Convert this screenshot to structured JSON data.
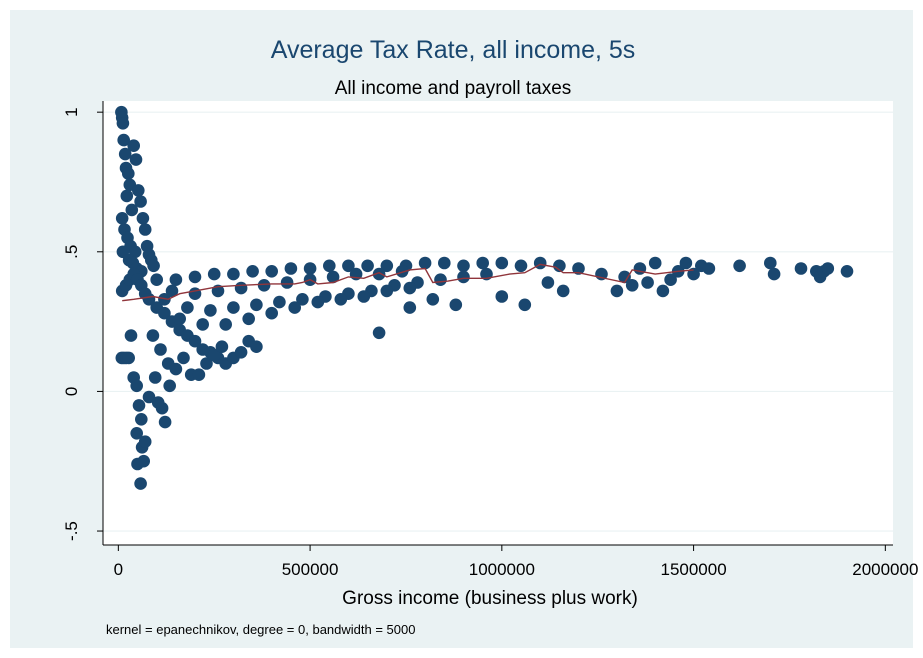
{
  "chart_data": {
    "type": "scatter",
    "title": "Average Tax Rate, all income, 5s",
    "subtitle": "All income and payroll taxes",
    "xlabel": "Gross income (business plus work)",
    "ylabel": "",
    "xlim": [
      -40000,
      2020000
    ],
    "ylim": [
      -0.55,
      1.04
    ],
    "xticks": [
      0,
      500000,
      1000000,
      1500000,
      2000000
    ],
    "xtick_labels": [
      "0",
      "500000",
      "1000000",
      "1500000",
      "2000000"
    ],
    "yticks": [
      -0.5,
      0,
      0.5,
      1
    ],
    "ytick_labels": [
      "-.5",
      "0",
      ".5",
      "1"
    ],
    "grid": true,
    "note": "kernel = epanechnikov, degree = 0, bandwidth = 5000",
    "colors": {
      "background": "#eaf2f3",
      "plot_region": "#ffffff",
      "marker": "#1a476f",
      "smooth_line": "#90353b",
      "title": "#1a476f"
    },
    "series": [
      {
        "type": "scatter",
        "points": [
          [
            8000,
            1.0
          ],
          [
            10000,
            0.98
          ],
          [
            12000,
            0.96
          ],
          [
            14000,
            0.9
          ],
          [
            18000,
            0.85
          ],
          [
            20000,
            0.8
          ],
          [
            26000,
            0.78
          ],
          [
            30000,
            0.74
          ],
          [
            22000,
            0.7
          ],
          [
            35000,
            0.65
          ],
          [
            40000,
            0.88
          ],
          [
            46000,
            0.83
          ],
          [
            52000,
            0.72
          ],
          [
            58000,
            0.68
          ],
          [
            64000,
            0.62
          ],
          [
            70000,
            0.58
          ],
          [
            75000,
            0.52
          ],
          [
            80000,
            0.49
          ],
          [
            86000,
            0.47
          ],
          [
            92000,
            0.45
          ],
          [
            10000,
            0.62
          ],
          [
            16000,
            0.58
          ],
          [
            24000,
            0.55
          ],
          [
            32000,
            0.52
          ],
          [
            44000,
            0.5
          ],
          [
            12000,
            0.5
          ],
          [
            28000,
            0.47
          ],
          [
            38000,
            0.46
          ],
          [
            48000,
            0.44
          ],
          [
            60000,
            0.43
          ],
          [
            9000,
            0.12
          ],
          [
            15000,
            0.12
          ],
          [
            21000,
            0.12
          ],
          [
            27000,
            0.12
          ],
          [
            33000,
            0.2
          ],
          [
            40000,
            0.05
          ],
          [
            48000,
            0.02
          ],
          [
            54000,
            -0.05
          ],
          [
            60000,
            -0.1
          ],
          [
            48000,
            -0.15
          ],
          [
            62000,
            -0.2
          ],
          [
            50000,
            -0.26
          ],
          [
            58000,
            -0.33
          ],
          [
            66000,
            -0.25
          ],
          [
            70000,
            -0.18
          ],
          [
            80000,
            -0.02
          ],
          [
            96000,
            0.05
          ],
          [
            104000,
            -0.04
          ],
          [
            114000,
            -0.06
          ],
          [
            122000,
            -0.11
          ],
          [
            134000,
            0.02
          ],
          [
            10000,
            0.36
          ],
          [
            20000,
            0.38
          ],
          [
            30000,
            0.4
          ],
          [
            40000,
            0.42
          ],
          [
            50000,
            0.4
          ],
          [
            60000,
            0.38
          ],
          [
            70000,
            0.35
          ],
          [
            80000,
            0.33
          ],
          [
            100000,
            0.3
          ],
          [
            120000,
            0.28
          ],
          [
            140000,
            0.25
          ],
          [
            160000,
            0.22
          ],
          [
            180000,
            0.2
          ],
          [
            200000,
            0.18
          ],
          [
            220000,
            0.15
          ],
          [
            240000,
            0.14
          ],
          [
            260000,
            0.12
          ],
          [
            280000,
            0.1
          ],
          [
            300000,
            0.12
          ],
          [
            320000,
            0.14
          ],
          [
            340000,
            0.18
          ],
          [
            360000,
            0.16
          ],
          [
            90000,
            0.2
          ],
          [
            110000,
            0.15
          ],
          [
            130000,
            0.1
          ],
          [
            150000,
            0.08
          ],
          [
            170000,
            0.12
          ],
          [
            190000,
            0.06
          ],
          [
            210000,
            0.06
          ],
          [
            230000,
            0.1
          ],
          [
            250000,
            0.13
          ],
          [
            270000,
            0.16
          ],
          [
            100000,
            0.4
          ],
          [
            150000,
            0.4
          ],
          [
            200000,
            0.41
          ],
          [
            250000,
            0.42
          ],
          [
            300000,
            0.42
          ],
          [
            350000,
            0.43
          ],
          [
            400000,
            0.43
          ],
          [
            450000,
            0.44
          ],
          [
            500000,
            0.44
          ],
          [
            550000,
            0.45
          ],
          [
            600000,
            0.45
          ],
          [
            650000,
            0.45
          ],
          [
            700000,
            0.45
          ],
          [
            750000,
            0.45
          ],
          [
            800000,
            0.46
          ],
          [
            850000,
            0.46
          ],
          [
            900000,
            0.45
          ],
          [
            950000,
            0.46
          ],
          [
            1000000,
            0.46
          ],
          [
            1050000,
            0.45
          ],
          [
            1100000,
            0.46
          ],
          [
            1150000,
            0.45
          ],
          [
            120000,
            0.33
          ],
          [
            180000,
            0.3
          ],
          [
            240000,
            0.29
          ],
          [
            300000,
            0.3
          ],
          [
            360000,
            0.31
          ],
          [
            420000,
            0.32
          ],
          [
            480000,
            0.33
          ],
          [
            540000,
            0.34
          ],
          [
            600000,
            0.35
          ],
          [
            660000,
            0.36
          ],
          [
            720000,
            0.38
          ],
          [
            780000,
            0.39
          ],
          [
            840000,
            0.4
          ],
          [
            900000,
            0.41
          ],
          [
            960000,
            0.42
          ],
          [
            140000,
            0.36
          ],
          [
            200000,
            0.35
          ],
          [
            260000,
            0.36
          ],
          [
            320000,
            0.37
          ],
          [
            380000,
            0.38
          ],
          [
            440000,
            0.39
          ],
          [
            500000,
            0.4
          ],
          [
            560000,
            0.41
          ],
          [
            620000,
            0.42
          ],
          [
            680000,
            0.42
          ],
          [
            740000,
            0.43
          ],
          [
            160000,
            0.26
          ],
          [
            220000,
            0.24
          ],
          [
            280000,
            0.24
          ],
          [
            340000,
            0.26
          ],
          [
            400000,
            0.28
          ],
          [
            460000,
            0.3
          ],
          [
            520000,
            0.32
          ],
          [
            580000,
            0.33
          ],
          [
            640000,
            0.34
          ],
          [
            700000,
            0.36
          ],
          [
            760000,
            0.37
          ],
          [
            680000,
            0.21
          ],
          [
            760000,
            0.3
          ],
          [
            820000,
            0.33
          ],
          [
            880000,
            0.31
          ],
          [
            1000000,
            0.34
          ],
          [
            1060000,
            0.31
          ],
          [
            1120000,
            0.39
          ],
          [
            1160000,
            0.36
          ],
          [
            1200000,
            0.44
          ],
          [
            1260000,
            0.42
          ],
          [
            1300000,
            0.36
          ],
          [
            1320000,
            0.41
          ],
          [
            1340000,
            0.38
          ],
          [
            1360000,
            0.44
          ],
          [
            1380000,
            0.39
          ],
          [
            1400000,
            0.46
          ],
          [
            1420000,
            0.36
          ],
          [
            1440000,
            0.4
          ],
          [
            1460000,
            0.43
          ],
          [
            1480000,
            0.46
          ],
          [
            1500000,
            0.42
          ],
          [
            1520000,
            0.45
          ],
          [
            1540000,
            0.44
          ],
          [
            1620000,
            0.45
          ],
          [
            1700000,
            0.46
          ],
          [
            1710000,
            0.42
          ],
          [
            1780000,
            0.44
          ],
          [
            1820000,
            0.43
          ],
          [
            1830000,
            0.41
          ],
          [
            1840000,
            0.43
          ],
          [
            1850000,
            0.44
          ],
          [
            1900000,
            0.43
          ]
        ]
      },
      {
        "type": "line",
        "points": [
          [
            10000,
            0.325
          ],
          [
            40000,
            0.33
          ],
          [
            90000,
            0.34
          ],
          [
            130000,
            0.33
          ],
          [
            160000,
            0.35
          ],
          [
            200000,
            0.36
          ],
          [
            260000,
            0.375
          ],
          [
            320000,
            0.38
          ],
          [
            400000,
            0.385
          ],
          [
            460000,
            0.385
          ],
          [
            480000,
            0.39
          ],
          [
            500000,
            0.4
          ],
          [
            520000,
            0.385
          ],
          [
            560000,
            0.39
          ],
          [
            600000,
            0.41
          ],
          [
            640000,
            0.405
          ],
          [
            680000,
            0.425
          ],
          [
            700000,
            0.41
          ],
          [
            760000,
            0.435
          ],
          [
            800000,
            0.44
          ],
          [
            820000,
            0.39
          ],
          [
            860000,
            0.395
          ],
          [
            900000,
            0.405
          ],
          [
            960000,
            0.405
          ],
          [
            1020000,
            0.42
          ],
          [
            1060000,
            0.425
          ],
          [
            1100000,
            0.455
          ],
          [
            1140000,
            0.445
          ],
          [
            1160000,
            0.425
          ],
          [
            1200000,
            0.425
          ],
          [
            1320000,
            0.39
          ],
          [
            1340000,
            0.435
          ],
          [
            1400000,
            0.42
          ],
          [
            1460000,
            0.43
          ],
          [
            1500000,
            0.435
          ]
        ]
      }
    ]
  }
}
